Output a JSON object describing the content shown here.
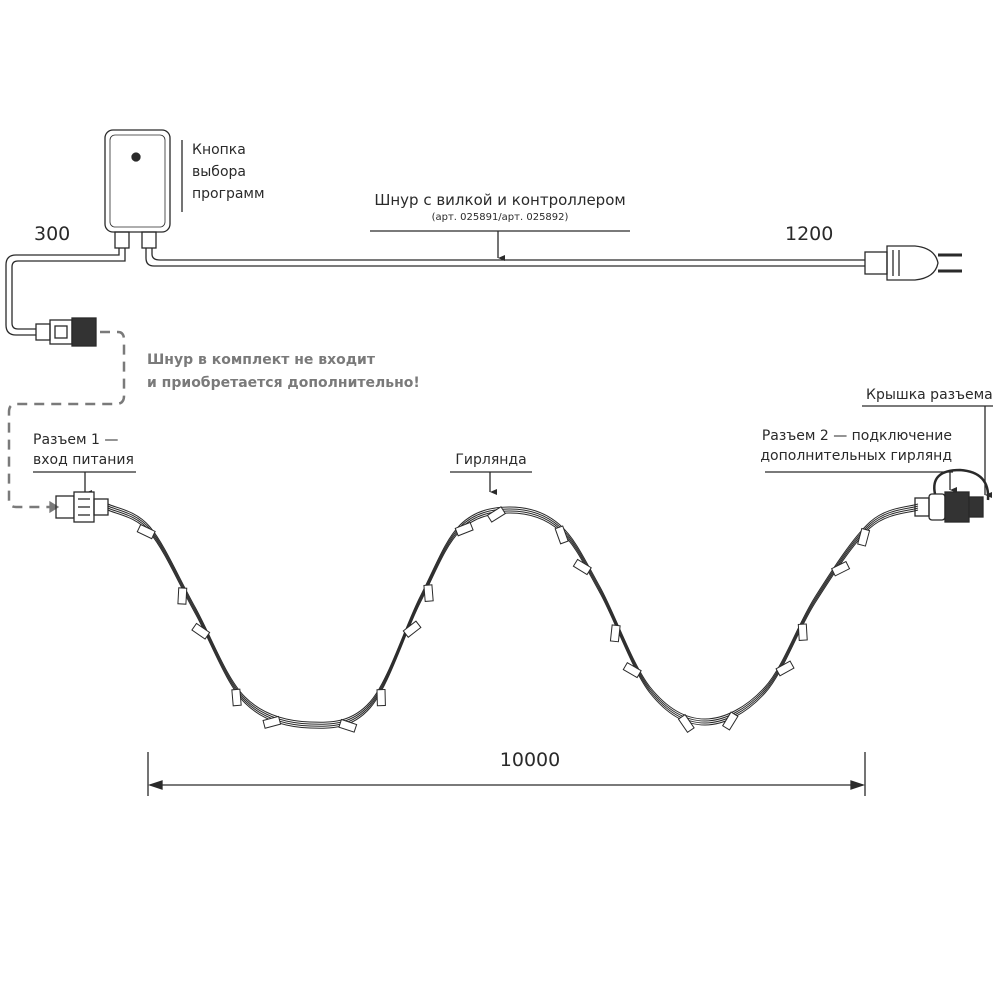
{
  "labels": {
    "program_button": [
      "Кнопка",
      "выбора",
      "программ"
    ],
    "cord_title": "Шнур с вилкой и контроллером",
    "cord_articles": "(арт. 025891/арт. 025892)",
    "dim_left_cord": "300",
    "dim_right_cord": "1200",
    "note": [
      "Шнур в комплект не входит",
      "и приобретается дополнительно!"
    ],
    "connector1": [
      "Разъем 1 —",
      "вход питания"
    ],
    "garland": "Гирлянда",
    "connector_cap": "Крышка разъема",
    "connector2": [
      "Разъем 2 — подключение",
      "дополнительных гирлянд"
    ],
    "dim_garland": "10000"
  },
  "colors": {
    "line": "#2a2a2a",
    "note": "#7a7a7a"
  }
}
